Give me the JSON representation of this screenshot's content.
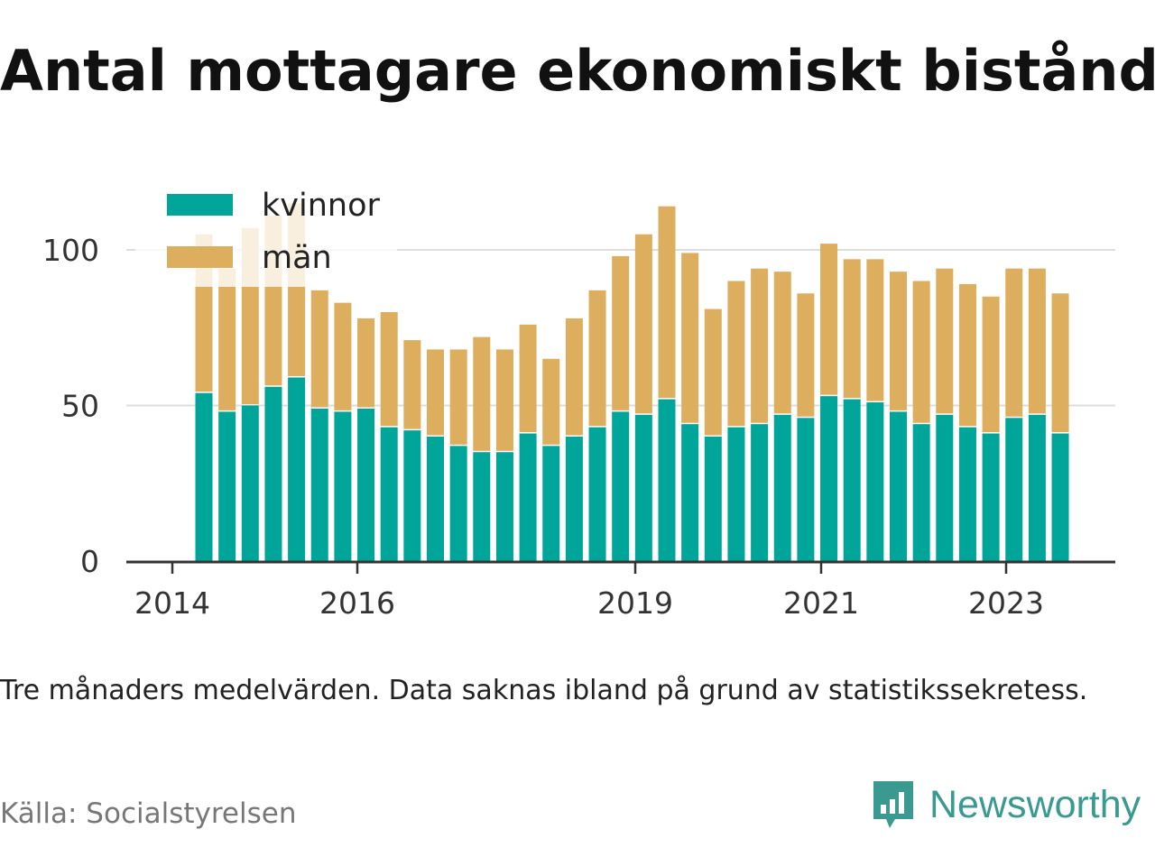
{
  "title": "Antal mottagare ekonomiskt bistånd",
  "subtitle": "Tre månaders medelvärden. Data saknas ibland på grund av statistikssekretess.",
  "source": "Källa: Socialstyrelsen",
  "brand": "Newsworthy",
  "colors": {
    "kvinnor": "#00a59a",
    "man": "#ddae5e",
    "brand": "#3a9a8f"
  },
  "chart_data": {
    "type": "bar",
    "stacked": true,
    "x_tick_labels": [
      "2014",
      "2016",
      "2019",
      "2021",
      "2023"
    ],
    "y_ticks": [
      0,
      50,
      100
    ],
    "ylim": [
      0,
      115
    ],
    "grid": true,
    "legend_position": "top-left",
    "series": [
      {
        "name": "kvinnor",
        "values": [
          54,
          48,
          50,
          56,
          59,
          49,
          48,
          49,
          43,
          42,
          40,
          37,
          35,
          35,
          41,
          37,
          40,
          43,
          48,
          47,
          52,
          44,
          40,
          43,
          44,
          47,
          46,
          53,
          52,
          51,
          48,
          44,
          47,
          43,
          41,
          46,
          47,
          41
        ]
      },
      {
        "name": "män",
        "values": [
          51,
          46,
          57,
          55,
          56,
          38,
          35,
          29,
          37,
          29,
          28,
          31,
          37,
          33,
          35,
          28,
          38,
          44,
          50,
          58,
          62,
          55,
          41,
          47,
          50,
          46,
          40,
          49,
          45,
          46,
          45,
          46,
          47,
          46,
          44,
          48,
          47,
          45
        ]
      }
    ]
  }
}
